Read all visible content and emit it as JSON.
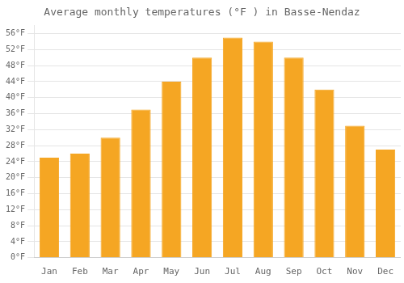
{
  "chart_data": {
    "type": "bar",
    "title": "Average monthly temperatures (°F ) in Basse-Nendaz",
    "categories": [
      "Jan",
      "Feb",
      "Mar",
      "Apr",
      "May",
      "Jun",
      "Jul",
      "Aug",
      "Sep",
      "Oct",
      "Nov",
      "Dec"
    ],
    "values": [
      25,
      26,
      30,
      37,
      44,
      50,
      55,
      54,
      50,
      42,
      33,
      27
    ],
    "color": "#F5A623",
    "ylim": [
      0,
      58
    ],
    "yticks": [
      {
        "value": 0,
        "label": "0°F"
      },
      {
        "value": 4,
        "label": "4°F"
      },
      {
        "value": 8,
        "label": "8°F"
      },
      {
        "value": 12,
        "label": "12°F"
      },
      {
        "value": 16,
        "label": "16°F"
      },
      {
        "value": 20,
        "label": "20°F"
      },
      {
        "value": 24,
        "label": "24°F"
      },
      {
        "value": 28,
        "label": "28°F"
      },
      {
        "value": 32,
        "label": "32°F"
      },
      {
        "value": 36,
        "label": "36°F"
      },
      {
        "value": 40,
        "label": "40°F"
      },
      {
        "value": 44,
        "label": "44°F"
      },
      {
        "value": 48,
        "label": "48°F"
      },
      {
        "value": 52,
        "label": "52°F"
      },
      {
        "value": 56,
        "label": "56°F"
      }
    ],
    "grid": true
  }
}
